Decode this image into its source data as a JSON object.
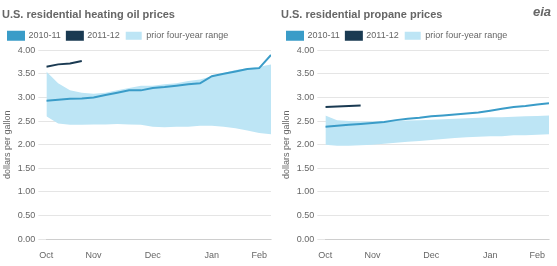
{
  "chart_data": [
    {
      "type": "line",
      "title": "U.S. residential heating oil prices",
      "ylabel": "dollars per gallon",
      "xlim": [
        0,
        19
      ],
      "xticks": [
        {
          "value": 0,
          "label": "Oct"
        },
        {
          "value": 4,
          "label": "Nov"
        },
        {
          "value": 9,
          "label": "Dec"
        },
        {
          "value": 14,
          "label": "Jan"
        },
        {
          "value": 18,
          "label": "Feb"
        }
      ],
      "ylim": [
        0.0,
        4.0
      ],
      "yticks": [
        {
          "value": 0.0,
          "label": "0.00"
        },
        {
          "value": 0.5,
          "label": "0.50"
        },
        {
          "value": 1.0,
          "label": "1.00"
        },
        {
          "value": 1.5,
          "label": "1.50"
        },
        {
          "value": 2.0,
          "label": "2.00"
        },
        {
          "value": 2.5,
          "label": "2.50"
        },
        {
          "value": 3.0,
          "label": "3.00"
        },
        {
          "value": 3.5,
          "label": "3.50"
        },
        {
          "value": 4.0,
          "label": "4.00"
        }
      ],
      "grid": "y",
      "legend": "upper left",
      "series": [
        {
          "name": "prior four-year range",
          "type": "range",
          "color": "#bde5f5",
          "x": [
            0,
            1,
            2,
            3,
            4,
            5,
            6,
            7,
            8,
            9,
            10,
            11,
            12,
            13,
            14,
            15,
            16,
            17,
            18,
            19
          ],
          "lower": [
            2.6,
            2.45,
            2.42,
            2.42,
            2.43,
            2.43,
            2.44,
            2.43,
            2.42,
            2.38,
            2.37,
            2.38,
            2.38,
            2.4,
            2.4,
            2.38,
            2.35,
            2.3,
            2.25,
            2.22
          ],
          "upper": [
            3.55,
            3.3,
            3.15,
            3.1,
            3.08,
            3.1,
            3.15,
            3.2,
            3.25,
            3.25,
            3.28,
            3.3,
            3.35,
            3.38,
            3.45,
            3.52,
            3.58,
            3.62,
            3.65,
            3.7
          ]
        },
        {
          "name": "2010-11",
          "color": "#3a9cc8",
          "x": [
            0,
            1,
            2,
            3,
            4,
            5,
            6,
            7,
            8,
            9,
            10,
            11,
            12,
            13,
            14,
            15,
            16,
            17,
            18,
            19
          ],
          "values": [
            2.93,
            2.95,
            2.97,
            2.98,
            3.0,
            3.05,
            3.1,
            3.15,
            3.15,
            3.2,
            3.22,
            3.25,
            3.28,
            3.3,
            3.45,
            3.5,
            3.55,
            3.6,
            3.62,
            3.9
          ]
        },
        {
          "name": "2011-12",
          "color": "#1a3a52",
          "x": [
            0,
            1,
            2,
            3
          ],
          "values": [
            3.65,
            3.7,
            3.72,
            3.77
          ]
        }
      ]
    },
    {
      "type": "line",
      "title": "U.S. residential propane prices",
      "ylabel": "dollars per gallon",
      "xlim": [
        0,
        19
      ],
      "xticks": [
        {
          "value": 0,
          "label": "Oct"
        },
        {
          "value": 4,
          "label": "Nov"
        },
        {
          "value": 9,
          "label": "Dec"
        },
        {
          "value": 14,
          "label": "Jan"
        },
        {
          "value": 18,
          "label": "Feb"
        }
      ],
      "ylim": [
        0.0,
        4.0
      ],
      "yticks": [
        {
          "value": 0.0,
          "label": "0.00"
        },
        {
          "value": 0.5,
          "label": "0.50"
        },
        {
          "value": 1.0,
          "label": "1.00"
        },
        {
          "value": 1.5,
          "label": "1.50"
        },
        {
          "value": 2.0,
          "label": "2.00"
        },
        {
          "value": 2.5,
          "label": "2.50"
        },
        {
          "value": 3.0,
          "label": "3.00"
        },
        {
          "value": 3.5,
          "label": "3.50"
        },
        {
          "value": 4.0,
          "label": "4.00"
        }
      ],
      "grid": "y",
      "legend": "upper left",
      "annotations": [
        "eia"
      ],
      "series": [
        {
          "name": "prior four-year range",
          "type": "range",
          "color": "#bde5f5",
          "x": [
            0,
            1,
            2,
            3,
            4,
            5,
            6,
            7,
            8,
            9,
            10,
            11,
            12,
            13,
            14,
            15,
            16,
            17,
            18,
            19
          ],
          "lower": [
            2.0,
            1.98,
            1.98,
            1.99,
            2.0,
            2.02,
            2.04,
            2.06,
            2.08,
            2.1,
            2.12,
            2.14,
            2.16,
            2.17,
            2.18,
            2.18,
            2.2,
            2.2,
            2.21,
            2.22
          ],
          "upper": [
            2.62,
            2.52,
            2.5,
            2.49,
            2.49,
            2.5,
            2.5,
            2.51,
            2.52,
            2.53,
            2.54,
            2.55,
            2.56,
            2.57,
            2.58,
            2.58,
            2.59,
            2.6,
            2.61,
            2.62
          ]
        },
        {
          "name": "2010-11",
          "color": "#3a9cc8",
          "x": [
            0,
            1,
            2,
            3,
            4,
            5,
            6,
            7,
            8,
            9,
            10,
            11,
            12,
            13,
            14,
            15,
            16,
            17,
            18,
            19
          ],
          "values": [
            2.38,
            2.4,
            2.42,
            2.44,
            2.46,
            2.48,
            2.52,
            2.55,
            2.57,
            2.6,
            2.62,
            2.64,
            2.66,
            2.68,
            2.72,
            2.76,
            2.8,
            2.82,
            2.85,
            2.88
          ]
        },
        {
          "name": "2011-12",
          "color": "#1a3a52",
          "x": [
            0,
            1,
            2,
            3
          ],
          "values": [
            2.8,
            2.81,
            2.82,
            2.83
          ]
        }
      ]
    }
  ]
}
